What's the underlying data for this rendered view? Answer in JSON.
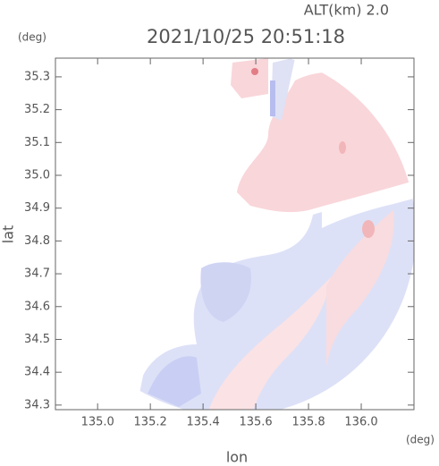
{
  "chart_data": {
    "type": "radar-map",
    "title": "2021/10/25 20:51:18",
    "annotation": "ALT(km) 2.0",
    "y_unit": "(deg)",
    "x_unit": "(deg)",
    "xlabel": "lon",
    "ylabel": "lat",
    "xlim": [
      134.84,
      136.2
    ],
    "ylim": [
      34.286,
      35.357
    ],
    "xticks": [
      {
        "value": 135.0,
        "label": "135.0"
      },
      {
        "value": 135.2,
        "label": "135.2"
      },
      {
        "value": 135.4,
        "label": "135.4"
      },
      {
        "value": 135.6,
        "label": "135.6"
      },
      {
        "value": 135.8,
        "label": "135.8"
      },
      {
        "value": 136.0,
        "label": "136.0"
      }
    ],
    "yticks": [
      {
        "value": 34.3,
        "label": "34.3"
      },
      {
        "value": 34.4,
        "label": "34.4"
      },
      {
        "value": 34.5,
        "label": "34.5"
      },
      {
        "value": 34.6,
        "label": "34.6"
      },
      {
        "value": 34.7,
        "label": "34.7"
      },
      {
        "value": 34.8,
        "label": "34.8"
      },
      {
        "value": 34.9,
        "label": "34.9"
      },
      {
        "value": 35.0,
        "label": "35.0"
      },
      {
        "value": 35.1,
        "label": "35.1"
      },
      {
        "value": 35.2,
        "label": "35.2"
      },
      {
        "value": 35.3,
        "label": "35.3"
      }
    ]
  }
}
